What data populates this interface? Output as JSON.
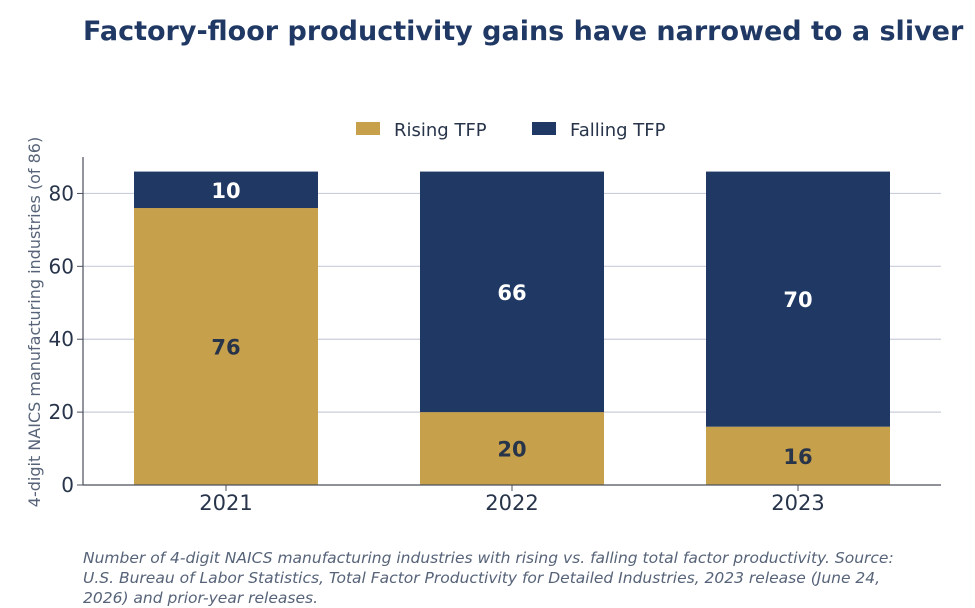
{
  "chart_data": {
    "type": "bar",
    "stacked": true,
    "title": "Factory-floor productivity gains have narrowed to a sliver",
    "ylabel": "4-digit NAICS manufacturing industries (of 86)",
    "xlabel": "",
    "categories": [
      "2021",
      "2022",
      "2023"
    ],
    "series": [
      {
        "name": "Rising TFP",
        "values": [
          76,
          20,
          16
        ],
        "color": "#c6a04b",
        "label_color": "#27344a"
      },
      {
        "name": "Falling TFP",
        "values": [
          10,
          66,
          70
        ],
        "color": "#1f3864",
        "label_color": "#ffffff"
      }
    ],
    "ylim": [
      0,
      90
    ],
    "yticks": [
      0,
      20,
      40,
      60,
      80
    ],
    "grid": true,
    "legend": "top-center",
    "caption": "Number of 4-digit NAICS manufacturing industries with rising vs. falling total factor productivity. Source: U.S. Bureau of Labor Statistics, Total Factor Productivity for Detailed Industries, 2023 release (June 24, 2026) and prior-year releases."
  }
}
